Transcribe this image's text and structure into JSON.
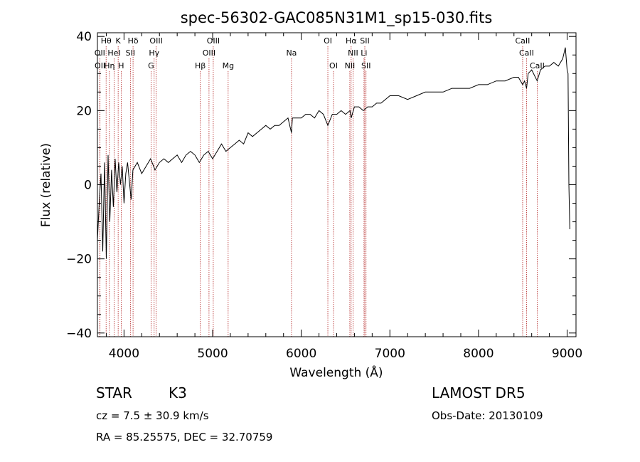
{
  "chart_data": {
    "type": "line",
    "title": "spec-56302-GAC085N31M1_sp15-030.fits",
    "xlabel": "Wavelength (Å)",
    "ylabel": "Flux (relative)",
    "xlim": [
      3700,
      9100
    ],
    "ylim": [
      -41,
      41
    ],
    "x_ticks": [
      4000,
      5000,
      6000,
      7000,
      8000,
      9000
    ],
    "y_ticks": [
      -40,
      -20,
      0,
      20,
      40
    ],
    "grid": false,
    "series": [
      {
        "x": [
          3700,
          3720,
          3740,
          3760,
          3780,
          3800,
          3820,
          3840,
          3860,
          3880,
          3900,
          3920,
          3940,
          3960,
          3980,
          4000,
          4020,
          4040,
          4060,
          4080,
          4100,
          4150,
          4200,
          4250,
          4300,
          4350,
          4400,
          4450,
          4500,
          4550,
          4600,
          4650,
          4700,
          4750,
          4800,
          4850,
          4900,
          4950,
          5000,
          5050,
          5100,
          5150,
          5200,
          5250,
          5300,
          5350,
          5400,
          5450,
          5500,
          5550,
          5600,
          5650,
          5700,
          5750,
          5800,
          5850,
          5890,
          5900,
          5950,
          6000,
          6050,
          6100,
          6150,
          6200,
          6250,
          6300,
          6350,
          6400,
          6450,
          6500,
          6550,
          6563,
          6600,
          6650,
          6700,
          6750,
          6800,
          6850,
          6900,
          6950,
          7000,
          7100,
          7200,
          7300,
          7400,
          7500,
          7600,
          7700,
          7800,
          7900,
          8000,
          8100,
          8200,
          8300,
          8400,
          8450,
          8498,
          8520,
          8542,
          8560,
          8600,
          8662,
          8700,
          8750,
          8800,
          8850,
          8900,
          8950,
          8980,
          9000,
          9010,
          9020,
          9030
        ],
        "y": [
          -15,
          -5,
          3,
          -18,
          6,
          -20,
          8,
          -10,
          4,
          -6,
          7,
          -2,
          6,
          0,
          5,
          -5,
          3,
          6,
          1,
          -4,
          4,
          6,
          3,
          5,
          7,
          4,
          6,
          7,
          6,
          7,
          8,
          6,
          8,
          9,
          8,
          6,
          8,
          9,
          7,
          9,
          11,
          9,
          10,
          11,
          12,
          11,
          14,
          13,
          14,
          15,
          16,
          15,
          16,
          16,
          17,
          18,
          14,
          18,
          18,
          18,
          19,
          19,
          18,
          20,
          19,
          16,
          19,
          19,
          20,
          19,
          20,
          18,
          21,
          21,
          20,
          21,
          21,
          22,
          22,
          23,
          24,
          24,
          23,
          24,
          25,
          25,
          25,
          26,
          26,
          26,
          27,
          27,
          28,
          28,
          29,
          29,
          27,
          28,
          26,
          30,
          31,
          28,
          31,
          32,
          32,
          33,
          32,
          34,
          37,
          31,
          30,
          0,
          -12
        ],
        "color": "#000000"
      }
    ],
    "spectral_lines": [
      {
        "label": "Hθ",
        "wavelength": 3798,
        "row": 1
      },
      {
        "label": "K",
        "wavelength": 3934,
        "row": 1
      },
      {
        "label": "Hδ",
        "wavelength": 4102,
        "row": 1
      },
      {
        "label": "OIII",
        "wavelength": 4363,
        "row": 1
      },
      {
        "label": "OIII",
        "wavelength": 5007,
        "row": 1
      },
      {
        "label": "OI",
        "wavelength": 6300,
        "row": 1
      },
      {
        "label": "Hα",
        "wavelength": 6563,
        "row": 1
      },
      {
        "label": "SII",
        "wavelength": 6717,
        "row": 1
      },
      {
        "label": "CaII",
        "wavelength": 8498,
        "row": 1
      },
      {
        "label": "OII",
        "wavelength": 3727,
        "row": 2
      },
      {
        "label": "HeI",
        "wavelength": 3889,
        "row": 2
      },
      {
        "label": "SII",
        "wavelength": 4072,
        "row": 2
      },
      {
        "label": "Hγ",
        "wavelength": 4340,
        "row": 2
      },
      {
        "label": "OIII",
        "wavelength": 4959,
        "row": 2
      },
      {
        "label": "Na",
        "wavelength": 5890,
        "row": 2
      },
      {
        "label": "NII",
        "wavelength": 6584,
        "row": 2
      },
      {
        "label": "Li",
        "wavelength": 6708,
        "row": 2
      },
      {
        "label": "CaII",
        "wavelength": 8542,
        "row": 2
      },
      {
        "label": "OII",
        "wavelength": 3729,
        "row": 3
      },
      {
        "label": "Hη",
        "wavelength": 3835,
        "row": 3
      },
      {
        "label": "H",
        "wavelength": 3968,
        "row": 3
      },
      {
        "label": "G",
        "wavelength": 4305,
        "row": 3
      },
      {
        "label": "Hβ",
        "wavelength": 4861,
        "row": 3
      },
      {
        "label": "Mg",
        "wavelength": 5175,
        "row": 3
      },
      {
        "label": "OI",
        "wavelength": 6364,
        "row": 3
      },
      {
        "label": "NII",
        "wavelength": 6548,
        "row": 3
      },
      {
        "label": "SII",
        "wavelength": 6731,
        "row": 3
      },
      {
        "label": "CaII",
        "wavelength": 8662,
        "row": 3
      }
    ],
    "line_color": "#b22222"
  },
  "info": {
    "object_class": "STAR",
    "subclass": "K3",
    "survey": "LAMOST DR5",
    "velocity": "cz = 7.5 ± 30.9 km/s",
    "obs_date": "Obs-Date: 20130109",
    "coords": "RA =  85.25575, DEC =  32.70759"
  }
}
